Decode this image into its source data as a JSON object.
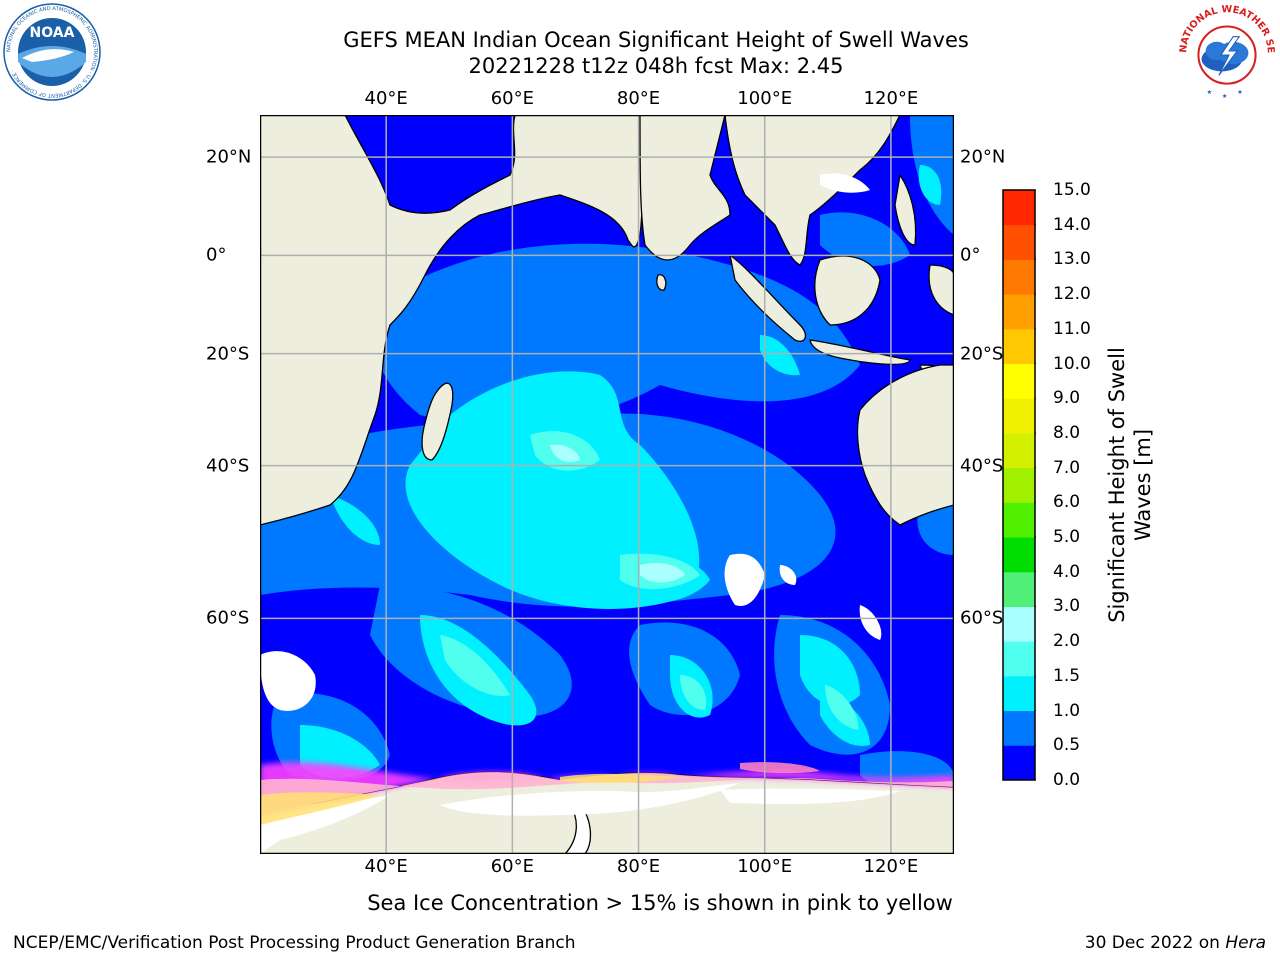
{
  "title_line1": "GEFS MEAN Indian Ocean Significant Height of Swell Waves",
  "title_line2": "20221228 t12z 048h fcst   Max: 2.45",
  "logos": {
    "left": {
      "name": "noaa-logo",
      "text": "NOAA",
      "ring_text": "NATIONAL OCEANIC AND ATMOSPHERIC ADMINISTRATION · U.S. DEPARTMENT OF COMMERCE ·",
      "color": "#1a5fa8"
    },
    "right": {
      "name": "nws-logo",
      "ring_text": "NATIONAL WEATHER SERVICE",
      "color": "#d62020"
    }
  },
  "map": {
    "lon_ticks": [
      "40°E",
      "60°E",
      "80°E",
      "100°E",
      "120°E"
    ],
    "lat_ticks": [
      "20°N",
      "0°",
      "20°S",
      "40°S",
      "60°S"
    ],
    "lon_values": [
      40,
      60,
      80,
      100,
      120
    ],
    "lat_values": [
      20,
      0,
      -20,
      -40,
      -60
    ],
    "lon_range": [
      20,
      130
    ],
    "lat_range": [
      -77,
      28
    ],
    "land_color": "#eeeedf",
    "ocean_base_color": "#0000ff"
  },
  "colorbar": {
    "title_line1": "Significant Height of Swell",
    "title_line2": "Waves [m]",
    "tick_labels": [
      "0.0",
      "0.5",
      "1.0",
      "1.5",
      "2.0",
      "3.0",
      "4.0",
      "5.0",
      "6.0",
      "7.0",
      "8.0",
      "9.0",
      "10.0",
      "11.0",
      "12.0",
      "13.0",
      "14.0",
      "15.0"
    ],
    "colors": [
      "#0000ff",
      "#0078ff",
      "#00f0ff",
      "#50ffee",
      "#aaffff",
      "#50f078",
      "#00dc00",
      "#50f000",
      "#a0f000",
      "#d2f000",
      "#f0f000",
      "#ffff00",
      "#ffc800",
      "#ffa000",
      "#ff7800",
      "#ff5000",
      "#ff2800"
    ]
  },
  "note": "Sea Ice Concentration > 15% is shown in pink to yellow",
  "footer_left": "NCEP/EMC/Verification Post Processing Product Generation Branch",
  "footer_right_prefix": "30 Dec 2022 on ",
  "footer_right_host": "Hera"
}
